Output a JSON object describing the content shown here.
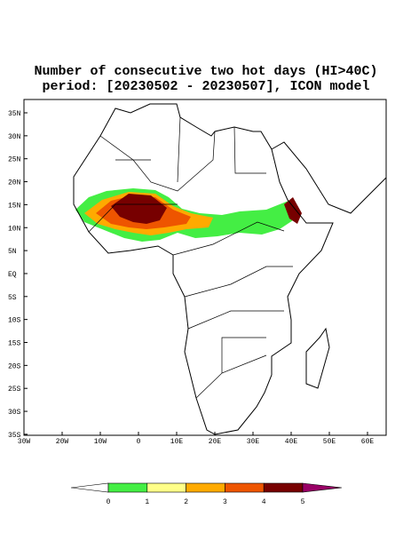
{
  "header": {
    "title_line1": "Number of consecutive two hot days (HI>40C)",
    "title_line2": "period: [20230502 - 20230507], ICON model"
  },
  "map": {
    "lat_labels": [
      "35N",
      "30N",
      "25N",
      "20N",
      "15N",
      "10N",
      "5N",
      "EQ",
      "5S",
      "10S",
      "15S",
      "20S",
      "25S",
      "30S",
      "35S"
    ],
    "lon_labels": [
      "30W",
      "20W",
      "10W",
      "0",
      "10E",
      "20E",
      "30E",
      "40E",
      "50E",
      "60E"
    ]
  },
  "colorbar": {
    "labels": [
      0,
      1,
      2,
      3,
      4,
      5
    ],
    "colors": [
      "#ffffff",
      "#44ee44",
      "#ffff88",
      "#ffaa00",
      "#ee5500",
      "#770000",
      "#990066"
    ]
  }
}
